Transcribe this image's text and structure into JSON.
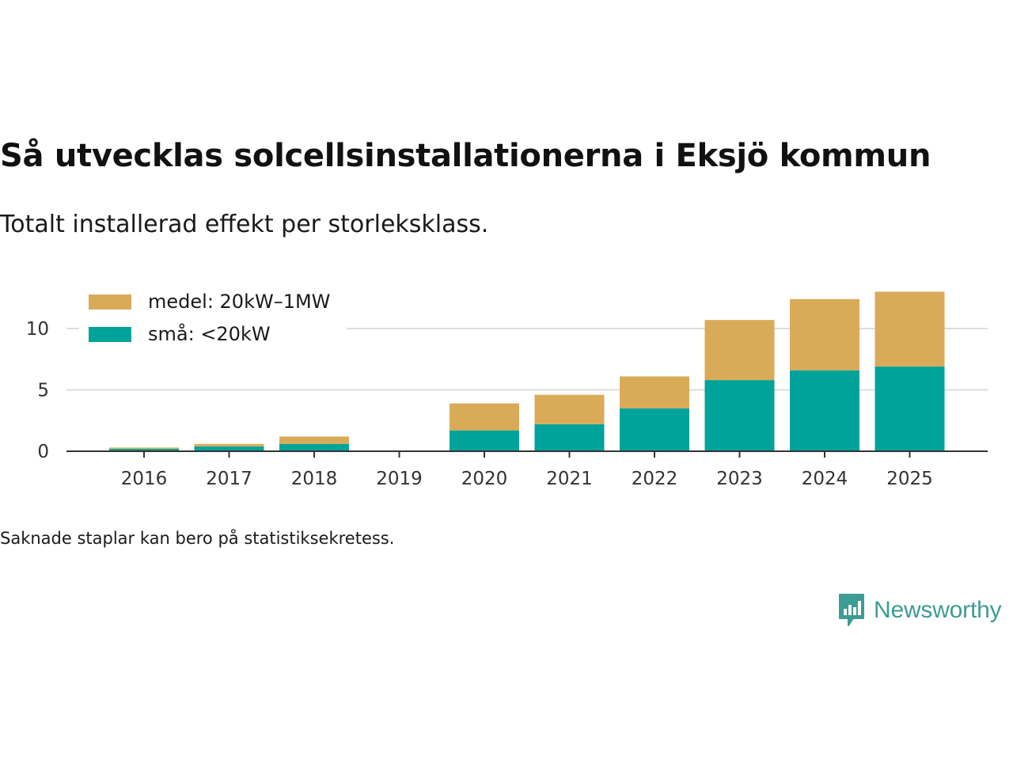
{
  "header": {
    "title": "Så utvecklas solcellsinstallationerna i Eksjö kommun",
    "subtitle": "Totalt installerad effekt per storleksklass."
  },
  "footer": {
    "note": "Saknade staplar kan bero på statistiksekretess.",
    "brand": "Newsworthy"
  },
  "colors": {
    "medel": "#d9ab58",
    "sma": "#00a39a",
    "grid": "#dddddd",
    "axis": "#333333",
    "brand": "#3d9c93"
  },
  "chart_data": {
    "type": "bar",
    "stacked": true,
    "title": "Så utvecklas solcellsinstallationerna i Eksjö kommun",
    "subtitle": "Totalt installerad effekt per storleksklass.",
    "xlabel": "",
    "ylabel": "",
    "ylim": [
      0,
      13
    ],
    "yticks": [
      0,
      5,
      10
    ],
    "grid": true,
    "legend": "top-left",
    "categories": [
      "2016",
      "2017",
      "2018",
      "2019",
      "2020",
      "2021",
      "2022",
      "2023",
      "2024",
      "2025"
    ],
    "series": [
      {
        "name": "små: <20kW",
        "key": "sma",
        "values": [
          0.2,
          0.4,
          0.6,
          null,
          1.7,
          2.2,
          3.5,
          5.8,
          6.6,
          6.9
        ]
      },
      {
        "name": "medel: 20kW–1MW",
        "key": "medel",
        "values": [
          0.1,
          0.2,
          0.6,
          null,
          2.2,
          2.4,
          2.6,
          4.9,
          5.8,
          6.1
        ]
      }
    ]
  }
}
